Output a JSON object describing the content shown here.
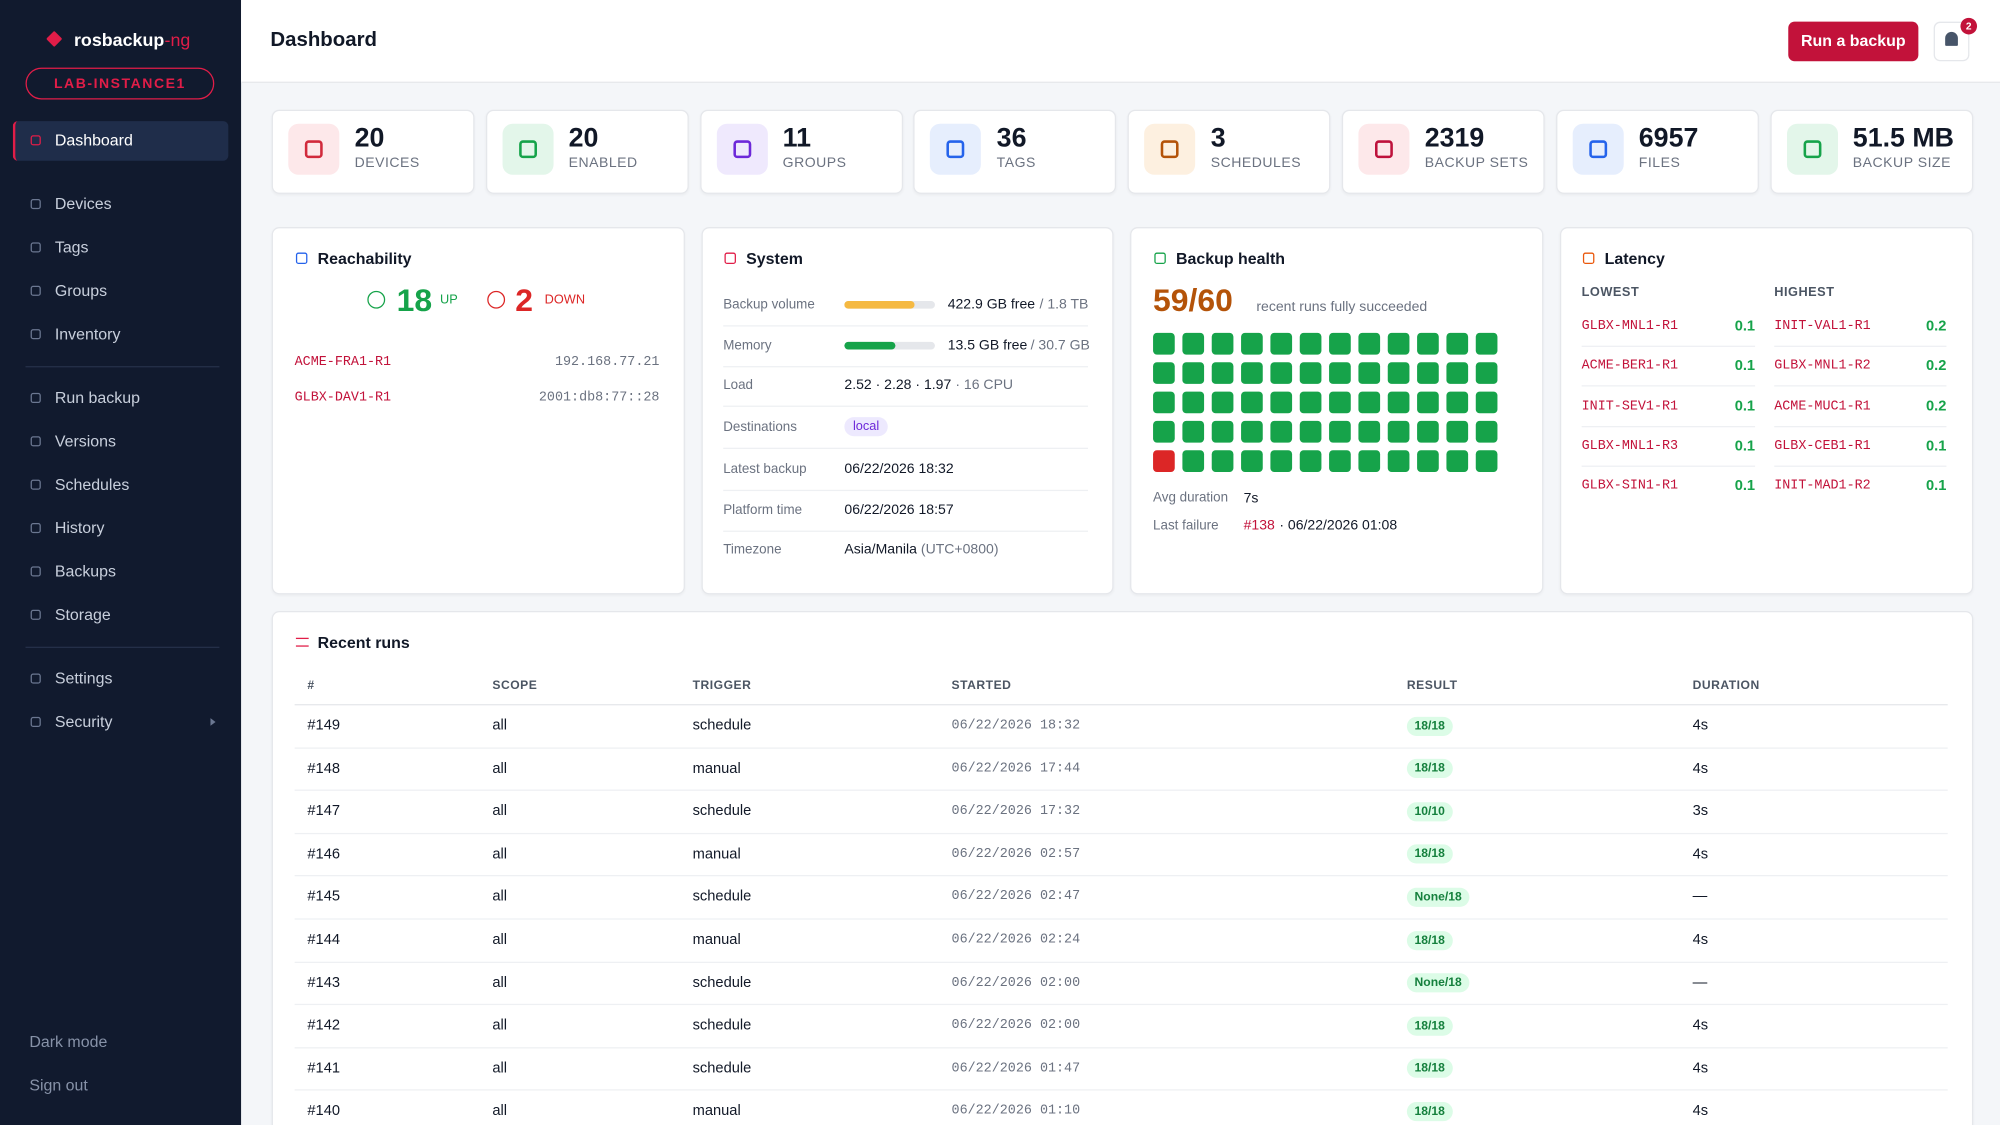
{
  "sidebar": {
    "brand": "rosbackup",
    "brand_suffix": "-ng",
    "instance": "LAB-INSTANCE1",
    "nav": [
      [
        "Dashboard"
      ],
      [
        "Devices",
        "Tags",
        "Groups",
        "Inventory"
      ],
      [
        "Run backup",
        "Versions",
        "Schedules",
        "History",
        "Backups",
        "Storage"
      ],
      [
        "Settings",
        "Security"
      ]
    ],
    "footer": [
      "Dark mode",
      "Sign out"
    ]
  },
  "header": {
    "title": "Dashboard",
    "action": "Run a backup",
    "notifications": 2
  },
  "stats": [
    {
      "value": 20,
      "label": "DEVICES"
    },
    {
      "value": 20,
      "label": "ENABLED"
    },
    {
      "value": 11,
      "label": "GROUPS"
    },
    {
      "value": 36,
      "label": "TAGS"
    },
    {
      "value": 3,
      "label": "SCHEDULES"
    },
    {
      "value": 2319,
      "label": "BACKUP SETS"
    },
    {
      "value": 6957,
      "label": "FILES"
    },
    {
      "value": "51.5 MB",
      "label": "BACKUP SIZE"
    }
  ],
  "reachability": {
    "title": "Reachability",
    "up": 18,
    "up_label": "UP",
    "down": 2,
    "down_label": "DOWN",
    "devices": [
      [
        "ACME-FRA1-R1",
        "192.168.77.21"
      ],
      [
        "GLBX-DAV1-R1",
        "2001:db8:77::28"
      ]
    ]
  },
  "system": {
    "title": "System",
    "volume": {
      "label": "Backup volume",
      "used_pct": 77,
      "free": "422.9 GB free",
      "total": "/ 1.8 TB"
    },
    "memory": {
      "label": "Memory",
      "used_pct": 56,
      "free": "13.5 GB free",
      "total": "/ 30.7 GB"
    },
    "load": {
      "label": "Load",
      "value": "2.52 · 2.28 · 1.97",
      "extra": "· 16 CPU"
    },
    "destinations": {
      "label": "Destinations",
      "value": "local"
    },
    "latest": {
      "label": "Latest backup",
      "value": "06/22/2026 18:32"
    },
    "platform": {
      "label": "Platform time",
      "value": "06/22/2026 18:57"
    },
    "timezone": {
      "label": "Timezone",
      "value": "Asia/Manila",
      "extra": "(UTC+0800)"
    }
  },
  "health": {
    "title": "Backup health",
    "score": "59/60",
    "caption": "recent runs fully succeeded",
    "runs": [
      "ok",
      "ok",
      "ok",
      "ok",
      "ok",
      "ok",
      "ok",
      "ok",
      "ok",
      "ok",
      "ok",
      "ok",
      "ok",
      "ok",
      "ok",
      "ok",
      "ok",
      "ok",
      "ok",
      "ok",
      "ok",
      "ok",
      "ok",
      "ok",
      "ok",
      "ok",
      "ok",
      "ok",
      "ok",
      "ok",
      "ok",
      "ok",
      "ok",
      "ok",
      "ok",
      "ok",
      "ok",
      "ok",
      "ok",
      "ok",
      "ok",
      "ok",
      "ok",
      "ok",
      "ok",
      "ok",
      "ok",
      "ok",
      "fail",
      "ok",
      "ok",
      "ok",
      "ok",
      "ok",
      "ok",
      "ok",
      "ok",
      "ok",
      "ok",
      "ok"
    ],
    "avg_label": "Avg duration",
    "avg": "7s",
    "fail_label": "Last failure",
    "fail_run": "#138",
    "fail_time": "· 06/22/2026 01:08"
  },
  "latency": {
    "title": "Latency",
    "lowest_label": "LOWEST",
    "highest_label": "HIGHEST",
    "lowest": [
      [
        "GLBX-MNL1-R1",
        0.1
      ],
      [
        "ACME-BER1-R1",
        0.1
      ],
      [
        "INIT-SEV1-R1",
        0.1
      ],
      [
        "GLBX-MNL1-R3",
        0.1
      ],
      [
        "GLBX-SIN1-R1",
        0.1
      ]
    ],
    "highest": [
      [
        "INIT-VAL1-R1",
        0.2
      ],
      [
        "GLBX-MNL1-R2",
        0.2
      ],
      [
        "ACME-MUC1-R1",
        0.2
      ],
      [
        "GLBX-CEB1-R1",
        0.1
      ],
      [
        "INIT-MAD1-R2",
        0.1
      ]
    ]
  },
  "runs": {
    "title": "Recent runs",
    "columns": [
      "#",
      "SCOPE",
      "TRIGGER",
      "STARTED",
      "RESULT",
      "DURATION"
    ],
    "rows": [
      [
        "#149",
        "all",
        "schedule",
        "06/22/2026 18:32",
        "18/18",
        "4s"
      ],
      [
        "#148",
        "all",
        "manual",
        "06/22/2026 17:44",
        "18/18",
        "4s"
      ],
      [
        "#147",
        "all",
        "schedule",
        "06/22/2026 17:32",
        "10/10",
        "3s"
      ],
      [
        "#146",
        "all",
        "manual",
        "06/22/2026 02:57",
        "18/18",
        "4s"
      ],
      [
        "#145",
        "all",
        "schedule",
        "06/22/2026 02:47",
        "None/18",
        "—"
      ],
      [
        "#144",
        "all",
        "manual",
        "06/22/2026 02:24",
        "18/18",
        "4s"
      ],
      [
        "#143",
        "all",
        "schedule",
        "06/22/2026 02:00",
        "None/18",
        "—"
      ],
      [
        "#142",
        "all",
        "schedule",
        "06/22/2026 02:00",
        "18/18",
        "4s"
      ],
      [
        "#141",
        "all",
        "schedule",
        "06/22/2026 01:47",
        "18/18",
        "4s"
      ],
      [
        "#140",
        "all",
        "manual",
        "06/22/2026 01:10",
        "18/18",
        "4s"
      ]
    ]
  }
}
